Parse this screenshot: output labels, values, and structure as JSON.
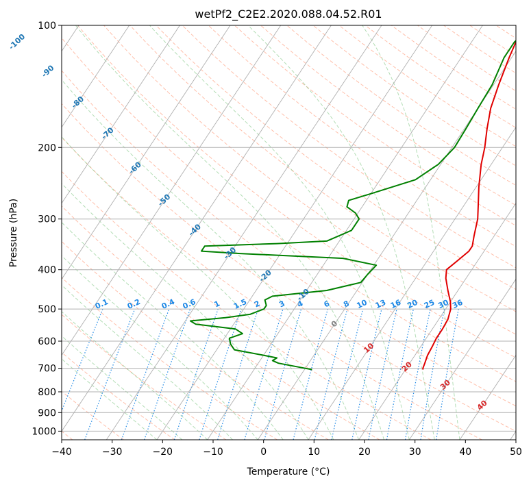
{
  "chart_data": {
    "type": "line",
    "title": "wetPf2_C2E2.2020.088.04.52.R01",
    "xlabel": "Temperature (°C)",
    "ylabel": "Pressure (hPa)",
    "xlim": [
      -40,
      50
    ],
    "ylim": [
      1050,
      100
    ],
    "y_scale": "log",
    "grid": true,
    "x_ticks": [
      "−40",
      "−30",
      "−20",
      "−10",
      "0",
      "10",
      "20",
      "30",
      "40",
      "50"
    ],
    "y_ticks": [
      {
        "p": 100,
        "label": "100"
      },
      {
        "p": 200,
        "label": "200"
      },
      {
        "p": 300,
        "label": "300"
      },
      {
        "p": 400,
        "label": "400"
      },
      {
        "p": 500,
        "label": "500"
      },
      {
        "p": 600,
        "label": "600"
      },
      {
        "p": 700,
        "label": "700"
      },
      {
        "p": 800,
        "label": "800"
      },
      {
        "p": 900,
        "label": "900"
      },
      {
        "p": 1000,
        "label": "1000"
      }
    ],
    "series": [
      {
        "role": "temperature",
        "color": "#e00000",
        "points": [
          [
            100,
            -1.5
          ],
          [
            110,
            -1.2
          ],
          [
            120,
            -0.5
          ],
          [
            140,
            1.0
          ],
          [
            160,
            2.5
          ],
          [
            180,
            4.5
          ],
          [
            200,
            6.5
          ],
          [
            220,
            8.0
          ],
          [
            250,
            10.5
          ],
          [
            280,
            13.0
          ],
          [
            300,
            14.5
          ],
          [
            330,
            16.0
          ],
          [
            350,
            17.0
          ],
          [
            360,
            17.0
          ],
          [
            380,
            16.0
          ],
          [
            400,
            15.0
          ],
          [
            420,
            16.0
          ],
          [
            450,
            18.0
          ],
          [
            480,
            20.0
          ],
          [
            500,
            21.0
          ],
          [
            530,
            21.8
          ],
          [
            560,
            22.0
          ],
          [
            590,
            22.0
          ],
          [
            620,
            22.3
          ],
          [
            650,
            22.5
          ],
          [
            680,
            23.0
          ],
          [
            700,
            23.3
          ],
          [
            705,
            23.5
          ]
        ]
      },
      {
        "role": "dewpoint",
        "color": "#008000",
        "points": [
          [
            100,
            0.0
          ],
          [
            110,
            -1.5
          ],
          [
            120,
            -1.5
          ],
          [
            140,
            -0.3
          ],
          [
            160,
            0.0
          ],
          [
            180,
            0.3
          ],
          [
            200,
            0.5
          ],
          [
            220,
            -0.5
          ],
          [
            240,
            -3.0
          ],
          [
            260,
            -10.0
          ],
          [
            270,
            -13.5
          ],
          [
            280,
            -13.0
          ],
          [
            290,
            -10.5
          ],
          [
            300,
            -9.0
          ],
          [
            320,
            -9.0
          ],
          [
            340,
            -12.5
          ],
          [
            345,
            -22.0
          ],
          [
            350,
            -36.0
          ],
          [
            360,
            -36.0
          ],
          [
            365,
            -28.0
          ],
          [
            375,
            -7.0
          ],
          [
            390,
            0.5
          ],
          [
            410,
            0.0
          ],
          [
            430,
            -0.3
          ],
          [
            450,
            -6.0
          ],
          [
            465,
            -16.0
          ],
          [
            475,
            -17.0
          ],
          [
            490,
            -16.0
          ],
          [
            500,
            -16.0
          ],
          [
            515,
            -18.0
          ],
          [
            525,
            -22.5
          ],
          [
            535,
            -29.0
          ],
          [
            545,
            -27.5
          ],
          [
            560,
            -19.0
          ],
          [
            575,
            -17.0
          ],
          [
            590,
            -19.0
          ],
          [
            610,
            -18.0
          ],
          [
            630,
            -16.5
          ],
          [
            650,
            -10.0
          ],
          [
            660,
            -7.0
          ],
          [
            670,
            -7.5
          ],
          [
            680,
            -6.0
          ],
          [
            700,
            0.0
          ],
          [
            705,
            1.5
          ]
        ]
      }
    ],
    "isotherm_labels": [
      "-100",
      "-90",
      "-80",
      "-70",
      "-60",
      "-50",
      "-40",
      "-30",
      "-20",
      "-10",
      "0",
      "10",
      "20",
      "30",
      "40"
    ],
    "mixing_ratio_labels": [
      "0.1",
      "0.2",
      "0.4",
      "0.6",
      "1",
      "1.5",
      "2",
      "3",
      "4",
      "6",
      "8",
      "10",
      "13",
      "16",
      "20",
      "25",
      "30",
      "36"
    ]
  },
  "colors": {
    "temperature": "#e00000",
    "dewpoint": "#008000",
    "isotherm_cold": "#1f77b4",
    "isotherm_warm": "#d62728",
    "zero_isotherm": "#808080",
    "mixing_ratio": "#1e88e5",
    "dry_adiabat": "#ff8a65",
    "moist_adiabat": "#81c784",
    "grid": "#b0b0b0"
  }
}
